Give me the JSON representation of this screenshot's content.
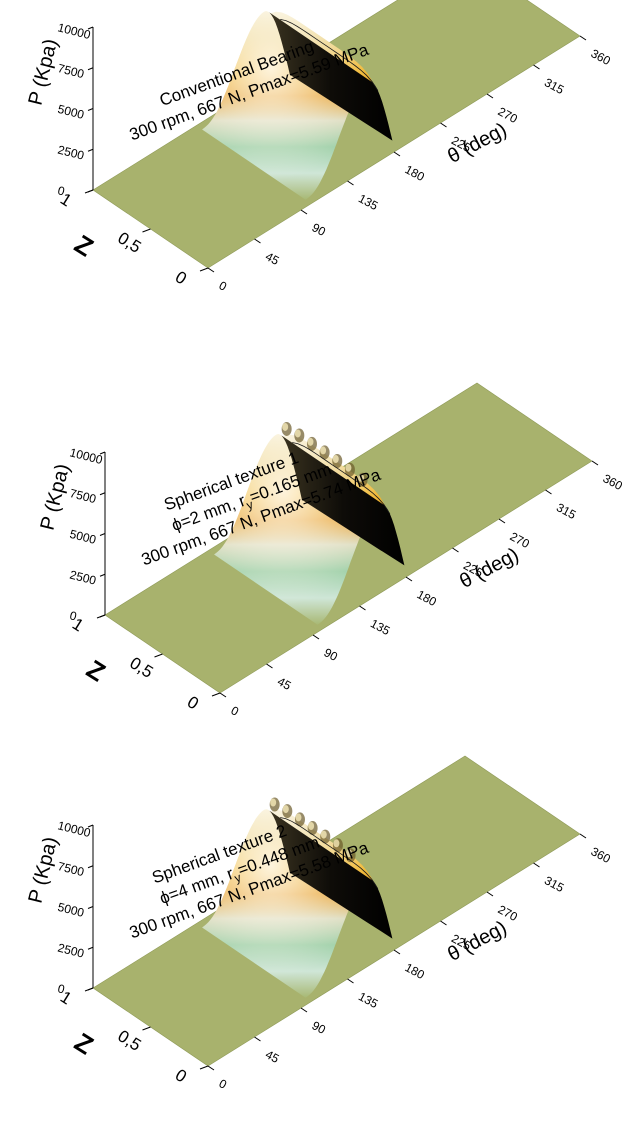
{
  "chart_data": [
    {
      "type": "surface",
      "annotation": [
        "Conventional Bearing",
        "300 rpm, 667 N, Pmax=5.59 MPa"
      ],
      "xlabel": "θ (deg)",
      "ylabel": "P (Kpa)",
      "zlabel": "Z",
      "x_ticks": [
        "0",
        "45",
        "90",
        "135",
        "180",
        "225",
        "270",
        "315",
        "360"
      ],
      "p_ticks": [
        "0",
        "2500",
        "5000",
        "7500",
        "10000"
      ],
      "z_ticks": [
        "0",
        "0,5",
        "1"
      ],
      "xlim": [
        0,
        360
      ],
      "plim": [
        0,
        10000
      ],
      "zlim": [
        0,
        1
      ],
      "p_max_kpa": 5590,
      "peak_theta_deg": 160,
      "pressure_zone_deg": [
        100,
        185
      ],
      "texture": "none"
    },
    {
      "type": "surface",
      "annotation": [
        "Spherical texture 1",
        "ϕ=2 mm, r",
        "y",
        "=0.165 mm",
        "300 rpm, 667 N, Pmax=5.74 MPa"
      ],
      "xlabel": "θ (deg)",
      "ylabel": "P (Kpa)",
      "zlabel": "Z",
      "x_ticks": [
        "0",
        "45",
        "90",
        "135",
        "180",
        "225",
        "270",
        "315",
        "360"
      ],
      "p_ticks": [
        "0",
        "2500",
        "5000",
        "7500",
        "10000"
      ],
      "z_ticks": [
        "0",
        "0,5",
        "1"
      ],
      "xlim": [
        0,
        360
      ],
      "plim": [
        0,
        10000
      ],
      "zlim": [
        0,
        1
      ],
      "p_max_kpa": 5740,
      "peak_theta_deg": 160,
      "pressure_zone_deg": [
        100,
        185
      ],
      "texture": "spherical dimples"
    },
    {
      "type": "surface",
      "annotation": [
        "Spherical texture 2",
        "ϕ=4 mm, r",
        "y",
        "=0.448 mm",
        "300 rpm, 667 N, Pmax=5.58 MPa"
      ],
      "xlabel": "θ (deg)",
      "ylabel": "P (Kpa)",
      "zlabel": "Z",
      "x_ticks": [
        "0",
        "45",
        "90",
        "135",
        "180",
        "225",
        "270",
        "315",
        "360"
      ],
      "p_ticks": [
        "0",
        "2500",
        "5000",
        "7500",
        "10000"
      ],
      "z_ticks": [
        "0",
        "0,5",
        "1"
      ],
      "xlim": [
        0,
        360
      ],
      "plim": [
        0,
        10000
      ],
      "zlim": [
        0,
        1
      ],
      "p_max_kpa": 5580,
      "peak_theta_deg": 160,
      "pressure_zone_deg": [
        100,
        185
      ],
      "texture": "spherical dimples"
    }
  ]
}
